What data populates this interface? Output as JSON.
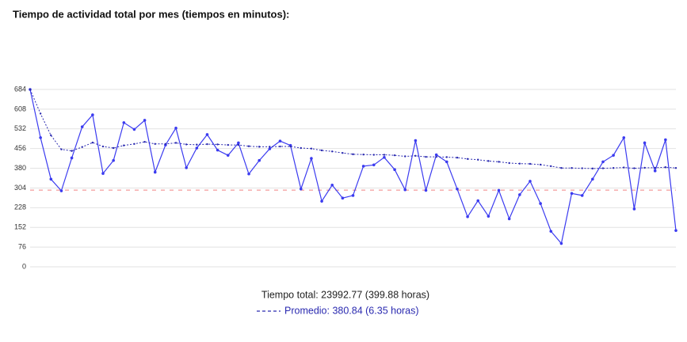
{
  "chart_data": {
    "type": "line",
    "title": "Tiempo de actividad total por mes (tiempos en minutos):",
    "total_label": "Tiempo total: 23992.77 (399.88 horas)",
    "ylim": [
      0,
      684
    ],
    "yticks": [
      0,
      76,
      152,
      228,
      304,
      380,
      456,
      532,
      608,
      684
    ],
    "grid": true,
    "reference_line": {
      "value": 296,
      "color": "#f08080"
    },
    "series": [
      {
        "color": "#3b3bf0",
        "style": "solid",
        "values": [
          684,
          498,
          338,
          293,
          420,
          540,
          586,
          360,
          410,
          556,
          530,
          565,
          365,
          470,
          535,
          382,
          458,
          510,
          450,
          430,
          478,
          358,
          410,
          455,
          485,
          468,
          300,
          418,
          253,
          315,
          265,
          275,
          388,
          393,
          422,
          375,
          297,
          487,
          295,
          432,
          405,
          300,
          193,
          255,
          195,
          295,
          185,
          278,
          330,
          244,
          137,
          90,
          283,
          275,
          338,
          405,
          430,
          498,
          223,
          478,
          370,
          490,
          140
        ]
      },
      {
        "name": "Promedio: 380.84 (6.35 horas)",
        "color": "#2a2ab0",
        "style": "dotted",
        "values": [
          684,
          591,
          507,
          453,
          447,
          462,
          479,
          464,
          458,
          468,
          474,
          482,
          474,
          474,
          478,
          472,
          471,
          473,
          472,
          470,
          470,
          465,
          463,
          463,
          464,
          464,
          458,
          456,
          449,
          445,
          439,
          434,
          433,
          432,
          432,
          430,
          426,
          428,
          424,
          424,
          423,
          421,
          416,
          413,
          408,
          405,
          400,
          398,
          397,
          394,
          388,
          381,
          381,
          380,
          379,
          380,
          381,
          383,
          380,
          382,
          382,
          384,
          381
        ]
      }
    ]
  }
}
